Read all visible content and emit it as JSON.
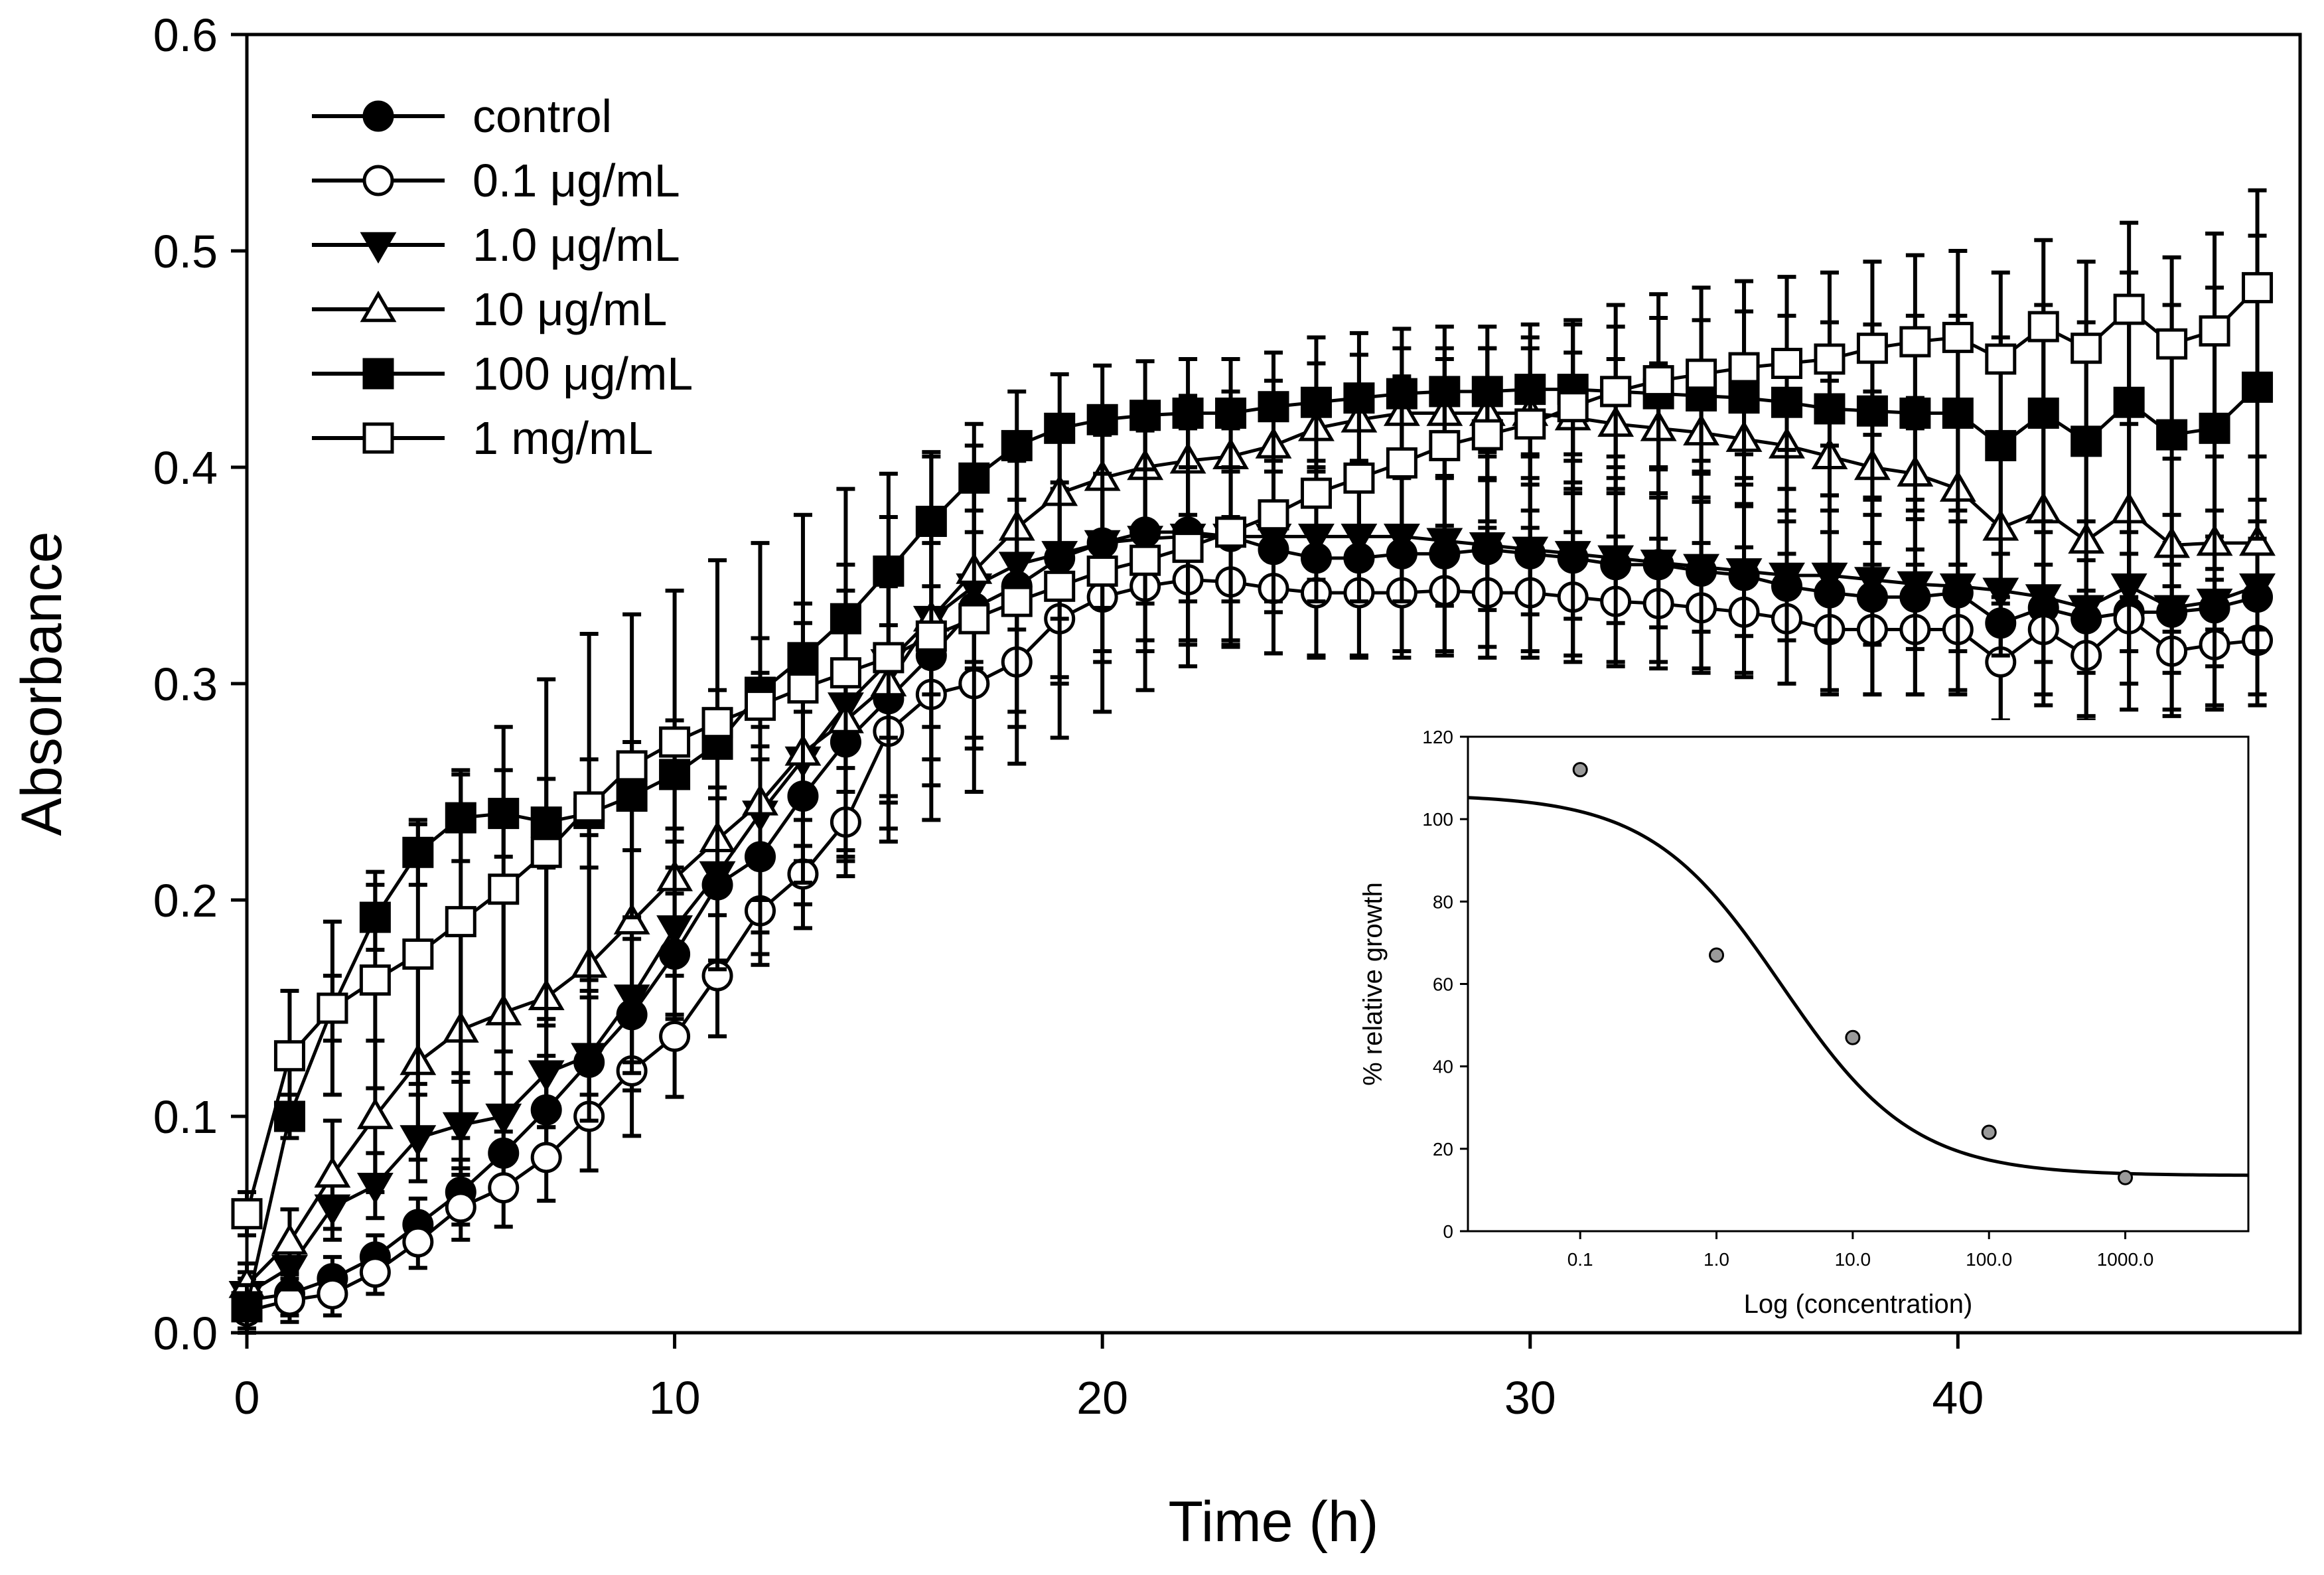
{
  "chart_data": [
    {
      "type": "line",
      "title": "",
      "xlabel": "Time (h)",
      "ylabel": "Absorbance",
      "xlim": [
        0,
        48
      ],
      "ylim": [
        0.0,
        0.6
      ],
      "xticks": [
        0,
        10,
        20,
        30,
        40
      ],
      "yticks": [
        0.0,
        0.1,
        0.2,
        0.3,
        0.4,
        0.5,
        0.6
      ],
      "ytick_labels": [
        "0.0",
        "0.1",
        "0.2",
        "0.3",
        "0.4",
        "0.5",
        "0.6"
      ],
      "legend_position": "top-left",
      "error_bars": true,
      "x": [
        0,
        1,
        2,
        3,
        4,
        5,
        6,
        7,
        8,
        9,
        10,
        11,
        12,
        13,
        14,
        15,
        16,
        17,
        18,
        19,
        20,
        21,
        22,
        23,
        24,
        25,
        26,
        27,
        28,
        29,
        30,
        31,
        32,
        33,
        34,
        35,
        36,
        37,
        38,
        39,
        40,
        41,
        42,
        43,
        44,
        45,
        46,
        47
      ],
      "series": [
        {
          "name": "control",
          "marker": "circle-filled",
          "values": [
            0.015,
            0.018,
            0.025,
            0.035,
            0.05,
            0.065,
            0.083,
            0.103,
            0.125,
            0.147,
            0.175,
            0.207,
            0.22,
            0.248,
            0.273,
            0.293,
            0.313,
            0.335,
            0.345,
            0.358,
            0.365,
            0.37,
            0.37,
            0.368,
            0.362,
            0.358,
            0.358,
            0.36,
            0.36,
            0.362,
            0.36,
            0.358,
            0.355,
            0.355,
            0.352,
            0.35,
            0.345,
            0.342,
            0.34,
            0.34,
            0.342,
            0.328,
            0.335,
            0.33,
            0.333,
            0.333,
            0.335,
            0.34
          ],
          "errors": [
            0.01,
            0.01,
            0.01,
            0.01,
            0.012,
            0.015,
            0.02,
            0.025,
            0.03,
            0.035,
            0.04,
            0.045,
            0.045,
            0.05,
            0.055,
            0.06,
            0.06,
            0.06,
            0.058,
            0.055,
            0.05,
            0.05,
            0.05,
            0.05,
            0.048,
            0.045,
            0.045,
            0.045,
            0.045,
            0.045,
            0.045,
            0.045,
            0.045,
            0.045,
            0.045,
            0.045,
            0.045,
            0.045,
            0.045,
            0.045,
            0.045,
            0.045,
            0.045,
            0.045,
            0.045,
            0.045,
            0.045,
            0.045
          ]
        },
        {
          "name": "0.1 μg/mL",
          "marker": "circle-open",
          "values": [
            0.01,
            0.015,
            0.018,
            0.028,
            0.042,
            0.058,
            0.067,
            0.081,
            0.1,
            0.121,
            0.137,
            0.165,
            0.195,
            0.212,
            0.236,
            0.278,
            0.295,
            0.3,
            0.31,
            0.33,
            0.34,
            0.345,
            0.348,
            0.347,
            0.344,
            0.342,
            0.342,
            0.342,
            0.343,
            0.342,
            0.342,
            0.34,
            0.338,
            0.337,
            0.335,
            0.333,
            0.33,
            0.325,
            0.325,
            0.325,
            0.325,
            0.31,
            0.325,
            0.313,
            0.33,
            0.315,
            0.318,
            0.32
          ],
          "errors": [
            0.01,
            0.01,
            0.01,
            0.01,
            0.012,
            0.015,
            0.018,
            0.02,
            0.025,
            0.03,
            0.028,
            0.028,
            0.025,
            0.025,
            0.025,
            0.03,
            0.03,
            0.03,
            0.03,
            0.03,
            0.03,
            0.03,
            0.03,
            0.03,
            0.03,
            0.03,
            0.03,
            0.03,
            0.03,
            0.03,
            0.03,
            0.03,
            0.03,
            0.03,
            0.03,
            0.03,
            0.03,
            0.03,
            0.03,
            0.03,
            0.03,
            0.03,
            0.03,
            0.03,
            0.03,
            0.03,
            0.03,
            0.03
          ]
        },
        {
          "name": "1.0 μg/mL",
          "marker": "triangle-down-filled",
          "values": [
            0.018,
            0.03,
            0.058,
            0.068,
            0.09,
            0.096,
            0.1,
            0.12,
            0.128,
            0.155,
            0.187,
            0.212,
            0.24,
            0.265,
            0.29,
            0.31,
            0.33,
            0.345,
            0.355,
            0.36,
            0.365,
            0.367,
            0.368,
            0.368,
            0.368,
            0.368,
            0.368,
            0.368,
            0.366,
            0.364,
            0.362,
            0.36,
            0.358,
            0.356,
            0.354,
            0.352,
            0.35,
            0.35,
            0.348,
            0.346,
            0.345,
            0.343,
            0.34,
            0.335,
            0.345,
            0.335,
            0.338,
            0.345
          ],
          "errors": [
            0.01,
            0.01,
            0.015,
            0.015,
            0.02,
            0.02,
            0.02,
            0.025,
            0.03,
            0.035,
            0.04,
            0.04,
            0.04,
            0.04,
            0.04,
            0.035,
            0.035,
            0.035,
            0.03,
            0.03,
            0.03,
            0.03,
            0.03,
            0.03,
            0.03,
            0.03,
            0.03,
            0.03,
            0.03,
            0.03,
            0.03,
            0.03,
            0.03,
            0.03,
            0.03,
            0.03,
            0.03,
            0.03,
            0.03,
            0.03,
            0.03,
            0.03,
            0.03,
            0.03,
            0.03,
            0.03,
            0.03,
            0.03
          ]
        },
        {
          "name": "10 μg/mL",
          "marker": "triangle-up-open",
          "values": [
            0.022,
            0.042,
            0.073,
            0.1,
            0.125,
            0.14,
            0.148,
            0.155,
            0.17,
            0.19,
            0.21,
            0.228,
            0.245,
            0.268,
            0.283,
            0.3,
            0.33,
            0.352,
            0.372,
            0.388,
            0.395,
            0.4,
            0.403,
            0.405,
            0.41,
            0.418,
            0.422,
            0.425,
            0.425,
            0.425,
            0.425,
            0.423,
            0.42,
            0.418,
            0.416,
            0.413,
            0.41,
            0.405,
            0.4,
            0.397,
            0.39,
            0.372,
            0.38,
            0.366,
            0.38,
            0.364,
            0.365,
            0.365
          ],
          "errors": [
            0.01,
            0.015,
            0.025,
            0.035,
            0.045,
            0.05,
            0.055,
            0.06,
            0.06,
            0.065,
            0.065,
            0.06,
            0.06,
            0.06,
            0.06,
            0.055,
            0.05,
            0.045,
            0.04,
            0.035,
            0.03,
            0.03,
            0.03,
            0.03,
            0.03,
            0.03,
            0.03,
            0.03,
            0.03,
            0.03,
            0.03,
            0.03,
            0.03,
            0.03,
            0.03,
            0.03,
            0.035,
            0.035,
            0.035,
            0.035,
            0.035,
            0.035,
            0.04,
            0.04,
            0.04,
            0.04,
            0.04,
            0.04
          ]
        },
        {
          "name": "100 μg/mL",
          "marker": "square-filled",
          "values": [
            0.012,
            0.1,
            0.15,
            0.192,
            0.222,
            0.238,
            0.24,
            0.236,
            0.24,
            0.248,
            0.258,
            0.272,
            0.296,
            0.312,
            0.33,
            0.352,
            0.375,
            0.395,
            0.41,
            0.418,
            0.422,
            0.424,
            0.425,
            0.425,
            0.428,
            0.43,
            0.432,
            0.434,
            0.435,
            0.435,
            0.436,
            0.436,
            0.435,
            0.434,
            0.433,
            0.432,
            0.43,
            0.427,
            0.426,
            0.425,
            0.425,
            0.41,
            0.425,
            0.412,
            0.43,
            0.415,
            0.418,
            0.437
          ],
          "errors": [
            0.01,
            0.01,
            0.015,
            0.015,
            0.015,
            0.02,
            0.02,
            0.02,
            0.025,
            0.025,
            0.025,
            0.025,
            0.025,
            0.025,
            0.025,
            0.025,
            0.03,
            0.025,
            0.025,
            0.025,
            0.025,
            0.025,
            0.025,
            0.025,
            0.025,
            0.03,
            0.03,
            0.03,
            0.03,
            0.03,
            0.03,
            0.03,
            0.03,
            0.035,
            0.035,
            0.04,
            0.04,
            0.04,
            0.04,
            0.045,
            0.045,
            0.05,
            0.05,
            0.055,
            0.06,
            0.06,
            0.065,
            0.07
          ]
        },
        {
          "name": "1 mg/mL",
          "marker": "square-open",
          "values": [
            0.055,
            0.128,
            0.15,
            0.163,
            0.175,
            0.19,
            0.205,
            0.222,
            0.243,
            0.262,
            0.273,
            0.282,
            0.29,
            0.298,
            0.305,
            0.312,
            0.322,
            0.33,
            0.338,
            0.345,
            0.352,
            0.357,
            0.363,
            0.37,
            0.378,
            0.388,
            0.395,
            0.402,
            0.41,
            0.415,
            0.42,
            0.428,
            0.435,
            0.44,
            0.443,
            0.446,
            0.448,
            0.45,
            0.455,
            0.458,
            0.46,
            0.45,
            0.465,
            0.455,
            0.473,
            0.457,
            0.463,
            0.483
          ],
          "errors": [
            0.01,
            0.03,
            0.04,
            0.05,
            0.06,
            0.07,
            0.075,
            0.08,
            0.08,
            0.07,
            0.07,
            0.075,
            0.075,
            0.08,
            0.085,
            0.085,
            0.085,
            0.08,
            0.075,
            0.07,
            0.065,
            0.06,
            0.055,
            0.05,
            0.045,
            0.04,
            0.04,
            0.04,
            0.04,
            0.04,
            0.04,
            0.04,
            0.04,
            0.04,
            0.04,
            0.04,
            0.04,
            0.04,
            0.04,
            0.04,
            0.04,
            0.04,
            0.04,
            0.04,
            0.04,
            0.04,
            0.045,
            0.045
          ]
        }
      ]
    },
    {
      "type": "scatter",
      "subtype": "inset dose-response",
      "title": "",
      "xlabel": "Log (concentration)",
      "ylabel": "% relative growth",
      "xscale": "log",
      "xticks": [
        0.1,
        1.0,
        10.0,
        100.0,
        1000.0
      ],
      "xtick_labels": [
        "0.1",
        "1.0",
        "10.0",
        "100.0",
        "1000.0"
      ],
      "xlim": [
        0.015,
        8000
      ],
      "ylim": [
        0,
        120
      ],
      "yticks": [
        0,
        20,
        40,
        60,
        80,
        100,
        120
      ],
      "points": {
        "x": [
          0.1,
          1.0,
          10.0,
          100.0,
          1000.0
        ],
        "y": [
          112,
          67,
          47,
          24,
          13
        ]
      },
      "fit_curve": {
        "model": "4-parameter logistic",
        "top": 106,
        "bottom": 13.5,
        "ec50": 3.0,
        "hill": 0.9
      }
    }
  ]
}
